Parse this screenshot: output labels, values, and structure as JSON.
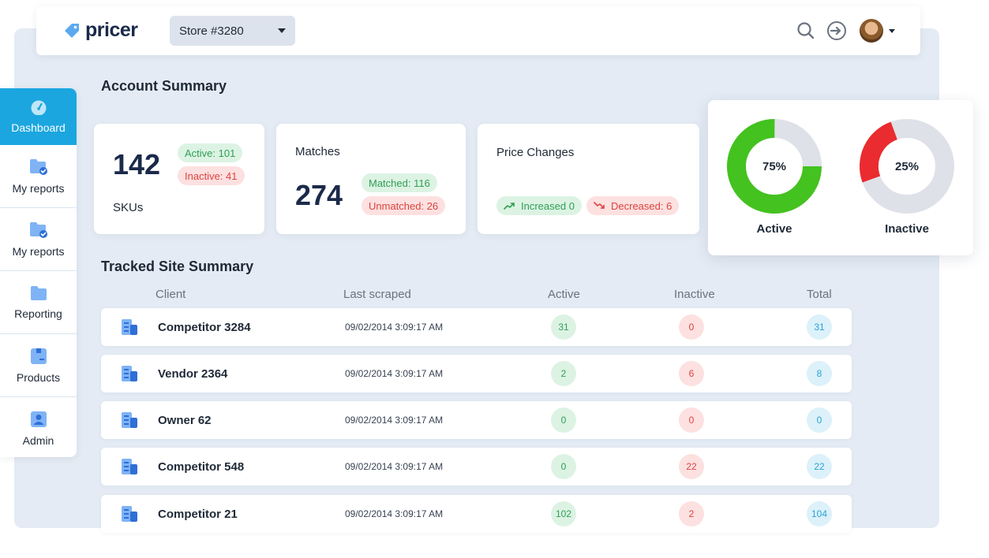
{
  "header": {
    "logo_text": "pricer",
    "store_selector": "Store #3280",
    "icons": [
      "search-icon",
      "sign-in-icon",
      "avatar",
      "chevron-down-icon"
    ]
  },
  "sidebar": {
    "items": [
      {
        "label": "Dashboard",
        "icon": "gauge-icon",
        "active": true
      },
      {
        "label": "My reports",
        "icon": "folder-check-icon"
      },
      {
        "label": "My reports",
        "icon": "folder-check-icon"
      },
      {
        "label": "Reporting",
        "icon": "folder-icon"
      },
      {
        "label": "Products",
        "icon": "box-icon"
      },
      {
        "label": "Admin",
        "icon": "user-icon"
      }
    ]
  },
  "account_summary": {
    "title": "Account Summary",
    "skus": {
      "value": "142",
      "label": "SKUs",
      "active": "Active:  101",
      "inactive": "Inactive:  41"
    },
    "matches": {
      "title": "Matches",
      "value": "274",
      "matched": "Matched:  116",
      "unmatched": "Unmatched:  26"
    },
    "price_changes": {
      "title": "Price Changes",
      "increased": "Increased  0",
      "decreased": "Decreased:  6"
    }
  },
  "status_donuts": [
    {
      "label": "Active",
      "percent_text": "75%",
      "fraction": 0.75,
      "color": "#44c21f"
    },
    {
      "label": "Inactive",
      "percent_text": "25%",
      "fraction": 0.25,
      "color": "#ea2b2f"
    }
  ],
  "tracked_sites": {
    "title": "Tracked Site Summary",
    "columns": {
      "client": "Client",
      "last_scraped": "Last scraped",
      "active": "Active",
      "inactive": "Inactive",
      "total": "Total"
    },
    "rows": [
      {
        "client": "Competitor 3284",
        "last_scraped": "09/02/2014 3:09:17 AM",
        "active": "31",
        "inactive": "0",
        "total": "31"
      },
      {
        "client": "Vendor 2364",
        "last_scraped": "09/02/2014 3:09:17 AM",
        "active": "2",
        "inactive": "6",
        "total": "8"
      },
      {
        "client": "Owner 62",
        "last_scraped": "09/02/2014 3:09:17 AM",
        "active": "0",
        "inactive": "0",
        "total": "0"
      },
      {
        "client": "Competitor 548",
        "last_scraped": "09/02/2014 3:09:17 AM",
        "active": "0",
        "inactive": "22",
        "total": "22"
      },
      {
        "client": "Competitor 21",
        "last_scraped": "09/02/2014 3:09:17 AM",
        "active": "102",
        "inactive": "2",
        "total": "104"
      }
    ]
  },
  "colors": {
    "accent": "#1ba6e0",
    "active_green": "#44c21f",
    "inactive_red": "#ea2b2f",
    "donut_track": "#dfe1e8"
  }
}
